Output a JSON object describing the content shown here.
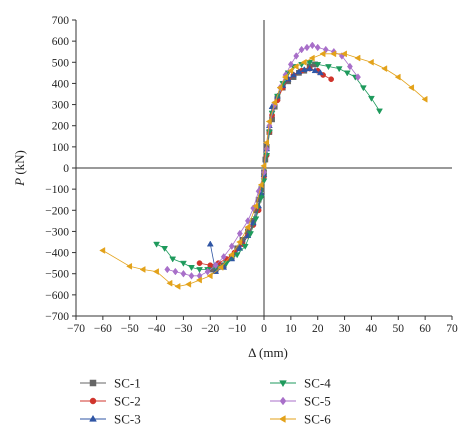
{
  "chart_data": {
    "type": "scatter",
    "title": "",
    "xlabel": "Δ (mm)",
    "ylabel_italic": "P",
    "ylabel_unit": " (kN)",
    "xlim": [
      -70,
      70
    ],
    "ylim": [
      -700,
      700
    ],
    "xticks": [
      -70,
      -60,
      -50,
      -40,
      -30,
      -20,
      -10,
      0,
      10,
      20,
      30,
      40,
      50,
      60,
      70
    ],
    "yticks": [
      -700,
      -600,
      -500,
      -400,
      -300,
      -200,
      -100,
      0,
      100,
      200,
      300,
      400,
      500,
      600,
      700
    ],
    "xtick_labels": [
      "−70",
      "−60",
      "−50",
      "−40",
      "−30",
      "−20",
      "−10",
      "0",
      "10",
      "20",
      "30",
      "40",
      "50",
      "60",
      "70"
    ],
    "ytick_labels": [
      "−700",
      "−600",
      "−500",
      "−400",
      "−300",
      "−200",
      "−100",
      "0",
      "100",
      "200",
      "300",
      "400",
      "500",
      "600",
      "700"
    ],
    "grid": false,
    "legend_position": "bottom",
    "series": [
      {
        "name": "SC-1",
        "color": "#666666",
        "marker": "square",
        "points": [
          [
            -20,
            -480
          ],
          [
            -18,
            -480
          ],
          [
            -15,
            -460
          ],
          [
            -12,
            -420
          ],
          [
            -10,
            -380
          ],
          [
            -8,
            -340
          ],
          [
            -6,
            -300
          ],
          [
            -4,
            -250
          ],
          [
            -3,
            -200
          ],
          [
            -2,
            -150
          ],
          [
            -1,
            -100
          ],
          [
            0,
            -20
          ],
          [
            0.5,
            40
          ],
          [
            1,
            100
          ],
          [
            2,
            170
          ],
          [
            3,
            230
          ],
          [
            4,
            290
          ],
          [
            5,
            330
          ],
          [
            7,
            380
          ],
          [
            9,
            410
          ],
          [
            11,
            430
          ],
          [
            13,
            450
          ],
          [
            15,
            460
          ],
          [
            17,
            480
          ],
          [
            19,
            490
          ]
        ]
      },
      {
        "name": "SC-2",
        "color": "#d0342c",
        "marker": "circle",
        "points": [
          [
            -24,
            -450
          ],
          [
            -20,
            -460
          ],
          [
            -17,
            -450
          ],
          [
            -14,
            -430
          ],
          [
            -11,
            -400
          ],
          [
            -8,
            -360
          ],
          [
            -6,
            -320
          ],
          [
            -4,
            -270
          ],
          [
            -2,
            -200
          ],
          [
            -1,
            -130
          ],
          [
            0,
            -40
          ],
          [
            1,
            60
          ],
          [
            2,
            170
          ],
          [
            3,
            250
          ],
          [
            5,
            320
          ],
          [
            7,
            380
          ],
          [
            9,
            420
          ],
          [
            11,
            440
          ],
          [
            14,
            460
          ],
          [
            17,
            470
          ],
          [
            20,
            460
          ],
          [
            22,
            440
          ],
          [
            25,
            420
          ]
        ]
      },
      {
        "name": "SC-3",
        "color": "#2f55a4",
        "marker": "triangle-up",
        "points": [
          [
            -20,
            -360
          ],
          [
            -18,
            -490
          ],
          [
            -15,
            -470
          ],
          [
            -12,
            -430
          ],
          [
            -9,
            -380
          ],
          [
            -6,
            -320
          ],
          [
            -4,
            -260
          ],
          [
            -2,
            -180
          ],
          [
            -1,
            -120
          ],
          [
            0,
            -30
          ],
          [
            1,
            90
          ],
          [
            2,
            200
          ],
          [
            3,
            290
          ],
          [
            5,
            340
          ],
          [
            7,
            390
          ],
          [
            9,
            420
          ],
          [
            11,
            440
          ],
          [
            13,
            455
          ],
          [
            15,
            465
          ],
          [
            17,
            470
          ],
          [
            19,
            460
          ],
          [
            21,
            450
          ]
        ]
      },
      {
        "name": "SC-4",
        "color": "#1e9a5c",
        "marker": "triangle-down",
        "points": [
          [
            -40,
            -360
          ],
          [
            -37,
            -380
          ],
          [
            -34,
            -430
          ],
          [
            -30,
            -450
          ],
          [
            -27,
            -470
          ],
          [
            -24,
            -480
          ],
          [
            -21,
            -480
          ],
          [
            -18,
            -470
          ],
          [
            -14,
            -450
          ],
          [
            -10,
            -410
          ],
          [
            -7,
            -370
          ],
          [
            -5,
            -310
          ],
          [
            -3,
            -240
          ],
          [
            -1,
            -140
          ],
          [
            0,
            -60
          ],
          [
            1,
            60
          ],
          [
            2,
            170
          ],
          [
            3,
            260
          ],
          [
            5,
            340
          ],
          [
            7,
            400
          ],
          [
            9,
            450
          ],
          [
            11,
            480
          ],
          [
            14,
            490
          ],
          [
            17,
            500
          ],
          [
            20,
            490
          ],
          [
            24,
            480
          ],
          [
            28,
            470
          ],
          [
            31,
            450
          ],
          [
            34,
            430
          ],
          [
            37,
            380
          ],
          [
            40,
            330
          ],
          [
            43,
            270
          ]
        ]
      },
      {
        "name": "SC-5",
        "color": "#a86fc9",
        "marker": "diamond",
        "points": [
          [
            -36,
            -480
          ],
          [
            -33,
            -490
          ],
          [
            -30,
            -500
          ],
          [
            -27,
            -510
          ],
          [
            -24,
            -510
          ],
          [
            -21,
            -490
          ],
          [
            -18,
            -460
          ],
          [
            -15,
            -420
          ],
          [
            -12,
            -370
          ],
          [
            -9,
            -310
          ],
          [
            -6,
            -250
          ],
          [
            -4,
            -190
          ],
          [
            -2,
            -110
          ],
          [
            0,
            -20
          ],
          [
            1,
            90
          ],
          [
            2,
            200
          ],
          [
            4,
            300
          ],
          [
            6,
            380
          ],
          [
            8,
            440
          ],
          [
            10,
            490
          ],
          [
            12,
            530
          ],
          [
            14,
            560
          ],
          [
            16,
            570
          ],
          [
            18,
            580
          ],
          [
            20,
            570
          ],
          [
            23,
            560
          ],
          [
            26,
            550
          ],
          [
            29,
            530
          ],
          [
            32,
            480
          ],
          [
            35,
            430
          ]
        ]
      },
      {
        "name": "SC-6",
        "color": "#e3a21a",
        "marker": "triangle-left",
        "points": [
          [
            -60,
            -390
          ],
          [
            -50,
            -465
          ],
          [
            -45,
            -480
          ],
          [
            -40,
            -490
          ],
          [
            -35,
            -545
          ],
          [
            -32,
            -560
          ],
          [
            -28,
            -550
          ],
          [
            -24,
            -530
          ],
          [
            -20,
            -510
          ],
          [
            -16,
            -470
          ],
          [
            -12,
            -410
          ],
          [
            -9,
            -350
          ],
          [
            -6,
            -280
          ],
          [
            -3,
            -180
          ],
          [
            -1,
            -80
          ],
          [
            0,
            10
          ],
          [
            1,
            120
          ],
          [
            2,
            220
          ],
          [
            4,
            310
          ],
          [
            6,
            380
          ],
          [
            8,
            430
          ],
          [
            10,
            460
          ],
          [
            12,
            480
          ],
          [
            15,
            500
          ],
          [
            18,
            520
          ],
          [
            22,
            540
          ],
          [
            26,
            540
          ],
          [
            30,
            540
          ],
          [
            35,
            520
          ],
          [
            40,
            500
          ],
          [
            45,
            470
          ],
          [
            50,
            430
          ],
          [
            55,
            380
          ],
          [
            60,
            325
          ]
        ]
      }
    ]
  }
}
